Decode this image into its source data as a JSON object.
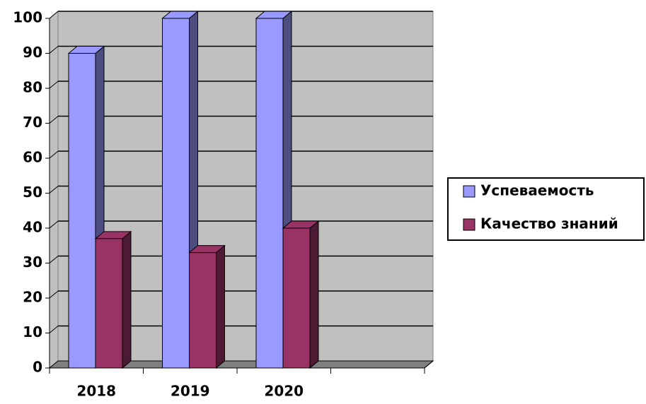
{
  "chart_data": {
    "type": "bar3d",
    "categories": [
      "2018",
      "2019",
      "2020",
      null
    ],
    "series": [
      {
        "name": "Успеваемость",
        "color": "#9999ff",
        "side_color": "#4d4d80",
        "values": [
          90,
          100,
          100,
          null
        ]
      },
      {
        "name": "Качество знаний",
        "color": "#993366",
        "side_color": "#4d1a33",
        "values": [
          37,
          33,
          40,
          null
        ]
      }
    ],
    "ylim": [
      0,
      100
    ],
    "yticks": [
      0,
      10,
      20,
      30,
      40,
      50,
      60,
      70,
      80,
      90,
      100
    ],
    "grid": true,
    "legend": "right"
  }
}
